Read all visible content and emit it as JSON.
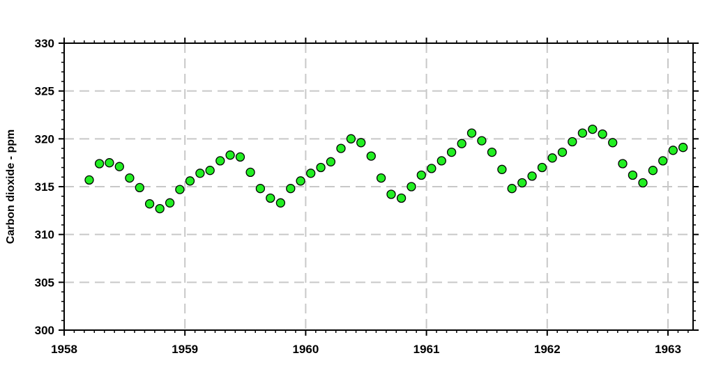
{
  "chart_data": {
    "type": "scatter",
    "title": "",
    "xlabel": "",
    "ylabel": "Carbon dioxide - ppm",
    "xlim": [
      1958,
      1963.2
    ],
    "ylim": [
      300,
      330
    ],
    "x_ticks": [
      1958,
      1959,
      1960,
      1961,
      1962,
      1963
    ],
    "y_ticks": [
      300,
      305,
      310,
      315,
      320,
      325,
      330
    ],
    "grid": true,
    "marker_color": "#22ee22",
    "marker_edge_color": "#000000",
    "grid_color": "#c8c8c8",
    "series": [
      {
        "x": [
          1958.208,
          1958.292,
          1958.375,
          1958.458,
          1958.542,
          1958.625,
          1958.708,
          1958.792,
          1958.875,
          1958.958,
          1959.042,
          1959.125,
          1959.208,
          1959.292,
          1959.375,
          1959.458,
          1959.542,
          1959.625,
          1959.708,
          1959.792,
          1959.875,
          1959.958,
          1960.042,
          1960.125,
          1960.208,
          1960.292,
          1960.375,
          1960.458,
          1960.542,
          1960.625,
          1960.708,
          1960.792,
          1960.875,
          1960.958,
          1961.042,
          1961.125,
          1961.208,
          1961.292,
          1961.375,
          1961.458,
          1961.542,
          1961.625,
          1961.708,
          1961.792,
          1961.875,
          1961.958,
          1962.042,
          1962.125,
          1962.208,
          1962.292,
          1962.375,
          1962.458,
          1962.542,
          1962.625,
          1962.708,
          1962.792,
          1962.875,
          1962.958,
          1963.042,
          1963.125
        ],
        "y": [
          315.7,
          317.4,
          317.5,
          317.1,
          315.9,
          314.9,
          313.2,
          312.7,
          313.3,
          314.7,
          315.6,
          316.4,
          316.7,
          317.7,
          318.3,
          318.1,
          316.5,
          314.8,
          313.8,
          313.3,
          314.8,
          315.6,
          316.4,
          317.0,
          317.6,
          319.0,
          320.0,
          319.6,
          318.2,
          315.9,
          314.2,
          313.8,
          315.0,
          316.2,
          316.9,
          317.7,
          318.6,
          319.5,
          320.6,
          319.8,
          318.6,
          316.8,
          314.8,
          315.4,
          316.1,
          317.0,
          318.0,
          318.6,
          319.7,
          320.6,
          321.0,
          320.5,
          319.6,
          317.4,
          316.2,
          315.4,
          316.7,
          317.7,
          318.8,
          319.1
        ]
      }
    ]
  }
}
